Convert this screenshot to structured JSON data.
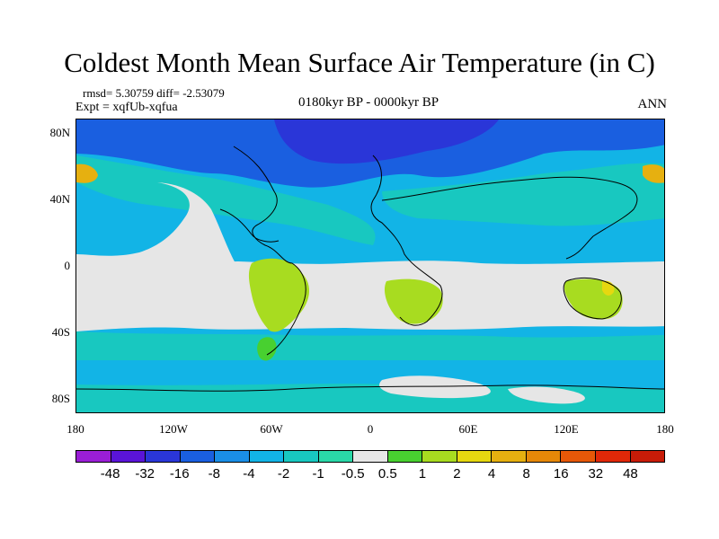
{
  "title": "Coldest Month Mean Surface Air Temperature (in C)",
  "stats": "rmsd= 5.30759 diff= -2.53079",
  "expt": "Expt = xqfUb-xqfua",
  "period": "0180kyr BP - 0000kyr BP",
  "season": "ANN",
  "lat_labels": [
    "80N",
    "40N",
    "0",
    "40S",
    "80S"
  ],
  "lon_labels": [
    "180",
    "120W",
    "60W",
    "0",
    "60E",
    "120E",
    "180"
  ],
  "colorbar": {
    "labels": [
      "-48",
      "-32",
      "-16",
      "-8",
      "-4",
      "-2",
      "-1",
      "-0.5",
      "0.5",
      "1",
      "2",
      "4",
      "8",
      "16",
      "32",
      "48"
    ],
    "colors": [
      "#9a1ed6",
      "#5a14d8",
      "#2a36d8",
      "#1a5fe0",
      "#1a8ee6",
      "#12b4e6",
      "#18c8c0",
      "#2ad8a8",
      "#e6e6e6",
      "#48d030",
      "#a8dc20",
      "#e6d810",
      "#e6b010",
      "#e68808",
      "#e65808",
      "#e02808",
      "#c81c08"
    ]
  }
}
